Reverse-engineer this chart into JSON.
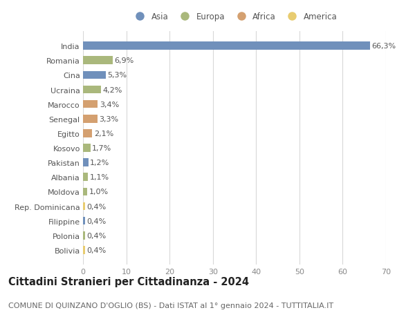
{
  "countries": [
    "India",
    "Romania",
    "Cina",
    "Ucraina",
    "Marocco",
    "Senegal",
    "Egitto",
    "Kosovo",
    "Pakistan",
    "Albania",
    "Moldova",
    "Rep. Dominicana",
    "Filippine",
    "Polonia",
    "Bolivia"
  ],
  "values": [
    66.3,
    6.9,
    5.3,
    4.2,
    3.4,
    3.3,
    2.1,
    1.7,
    1.2,
    1.1,
    1.0,
    0.4,
    0.4,
    0.4,
    0.4
  ],
  "labels": [
    "66,3%",
    "6,9%",
    "5,3%",
    "4,2%",
    "3,4%",
    "3,3%",
    "2,1%",
    "1,7%",
    "1,2%",
    "1,1%",
    "1,0%",
    "0,4%",
    "0,4%",
    "0,4%",
    "0,4%"
  ],
  "continents": [
    "Asia",
    "Europa",
    "Asia",
    "Europa",
    "Africa",
    "Africa",
    "Africa",
    "Europa",
    "Asia",
    "Europa",
    "Europa",
    "America",
    "Asia",
    "Europa",
    "America"
  ],
  "continent_colors": {
    "Asia": "#7090bb",
    "Europa": "#aab87c",
    "Africa": "#d4a070",
    "America": "#e8cc70"
  },
  "legend_order": [
    "Asia",
    "Europa",
    "Africa",
    "America"
  ],
  "title": "Cittadini Stranieri per Cittadinanza - 2024",
  "subtitle": "COMUNE DI QUINZANO D'OGLIO (BS) - Dati ISTAT al 1° gennaio 2024 - TUTTITALIA.IT",
  "xlim": [
    0,
    70
  ],
  "xticks": [
    0,
    10,
    20,
    30,
    40,
    50,
    60,
    70
  ],
  "background_color": "#ffffff",
  "grid_color": "#d8d8d8",
  "bar_height": 0.55,
  "title_fontsize": 10.5,
  "subtitle_fontsize": 8,
  "tick_fontsize": 8,
  "label_fontsize": 8
}
